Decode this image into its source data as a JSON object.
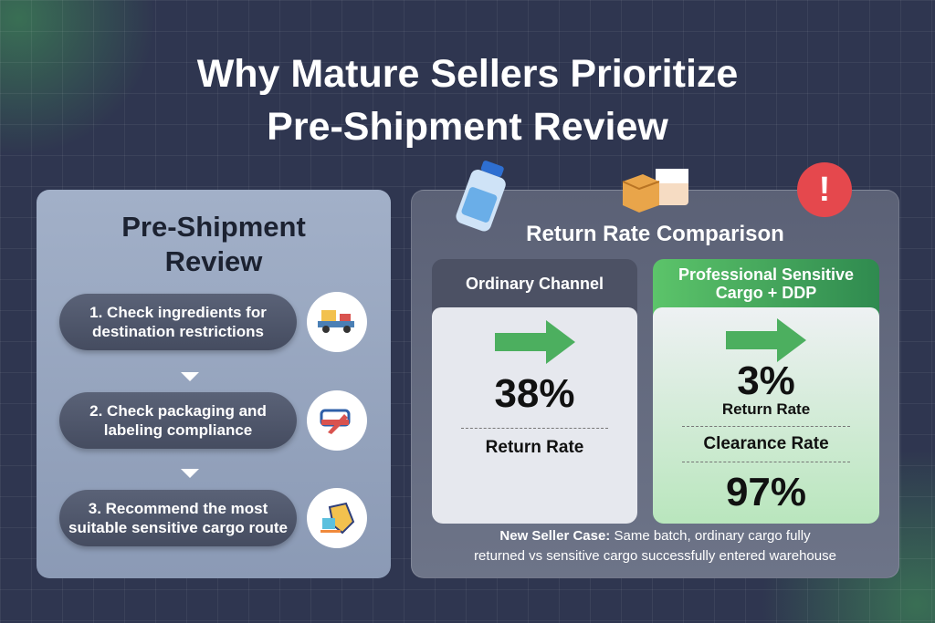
{
  "title": {
    "line1": "Why Mature Sellers Prioritize",
    "line2": "Pre-Shipment Review"
  },
  "review": {
    "heading_line1": "Pre-Shipment",
    "heading_line2": "Review",
    "steps": [
      {
        "line1": "1. Check ingredients for",
        "line2": "destination restrictions",
        "icon": "truck-icon"
      },
      {
        "line1": "2. Check packaging and",
        "line2": "labeling compliance",
        "icon": "label-tag-icon"
      },
      {
        "line1": "3. Recommend the most",
        "line2": "suitable sensitive cargo route",
        "icon": "route-map-icon"
      }
    ]
  },
  "comparison": {
    "title": "Return Rate Comparison",
    "ordinary": {
      "header": "Ordinary Channel",
      "value": "38%",
      "label": "Return Rate"
    },
    "professional": {
      "header_line1": "Professional Sensitive",
      "header_line2": "Cargo + DDP",
      "return_value": "3%",
      "return_label": "Return Rate",
      "clearance_label": "Clearance Rate",
      "clearance_value": "97%"
    },
    "footer": {
      "bold": "New Seller Case:",
      "line1": " Same batch, ordinary cargo fully",
      "line2": "returned vs sensitive cargo successfully entered warehouse"
    }
  },
  "colors": {
    "background": "#2f3650",
    "accent_green": "#4caf5f",
    "alert_red": "#e5484d"
  }
}
